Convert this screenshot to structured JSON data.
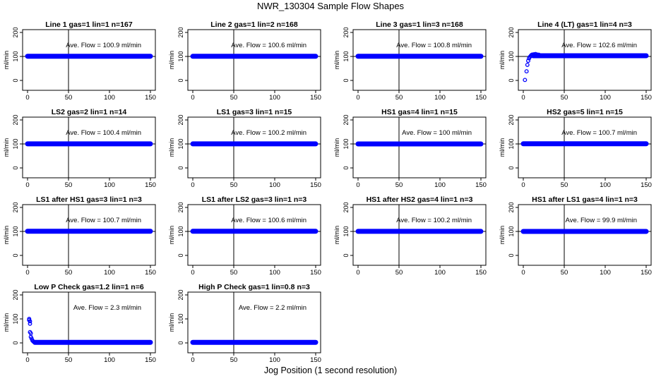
{
  "figure": {
    "title": "NWR_130304  Sample Flow Shapes",
    "xlabel": "Jog Position (1 second resolution)"
  },
  "colors": {
    "points": "#0000ff",
    "axes": "#000000",
    "background": "#ffffff"
  },
  "chart_data": [
    {
      "type": "scatter",
      "title": "Line 1 gas=1 lin=1 n=167",
      "ylabel": "ml/min",
      "annotation": "Ave. Flow =  100.9  ml/min",
      "xlim": [
        0,
        150
      ],
      "ylim": [
        0,
        200
      ],
      "xticks": [
        0,
        50,
        100,
        150
      ],
      "yticks": [
        0,
        100,
        200
      ],
      "vline_x": 50,
      "hline_y": 100,
      "shape": "flat",
      "flat_y": 100.9,
      "x_range": [
        0,
        150
      ]
    },
    {
      "type": "scatter",
      "title": "Line 2 gas=1 lin=2 n=168",
      "ylabel": "ml/min",
      "annotation": "Ave. Flow =  100.6  ml/min",
      "xlim": [
        0,
        150
      ],
      "ylim": [
        0,
        200
      ],
      "xticks": [
        0,
        50,
        100,
        150
      ],
      "yticks": [
        0,
        100,
        200
      ],
      "vline_x": 50,
      "hline_y": 100,
      "shape": "flat",
      "flat_y": 100.6,
      "x_range": [
        0,
        150
      ]
    },
    {
      "type": "scatter",
      "title": "Line 3 gas=1 lin=3 n=168",
      "ylabel": "ml/min",
      "annotation": "Ave. Flow =  100.8  ml/min",
      "xlim": [
        0,
        150
      ],
      "ylim": [
        0,
        200
      ],
      "xticks": [
        0,
        50,
        100,
        150
      ],
      "yticks": [
        0,
        100,
        200
      ],
      "vline_x": 50,
      "hline_y": 100,
      "shape": "flat",
      "flat_y": 100.8,
      "x_range": [
        0,
        150
      ]
    },
    {
      "type": "scatter",
      "title": "Line 4 (LT) gas=1 lin=4 n=3",
      "ylabel": "ml/min",
      "annotation": "Ave. Flow =  102.6  ml/min",
      "xlim": [
        0,
        150
      ],
      "ylim": [
        0,
        200
      ],
      "xticks": [
        0,
        50,
        100,
        150
      ],
      "yticks": [
        0,
        100,
        200
      ],
      "vline_x": 50,
      "hline_y": 100,
      "shape": "flat",
      "flat_y": 103,
      "x_range": [
        12,
        150
      ],
      "points": [
        [
          2,
          2
        ],
        [
          4,
          38
        ],
        [
          5,
          65
        ],
        [
          6,
          82
        ],
        [
          7,
          92
        ],
        [
          8,
          98
        ],
        [
          9,
          102
        ],
        [
          10,
          106
        ],
        [
          11,
          108
        ],
        [
          13,
          109
        ],
        [
          15,
          110
        ],
        [
          17,
          108
        ],
        [
          19,
          107
        ]
      ]
    },
    {
      "type": "scatter",
      "title": "LS2 gas=2 lin=1 n=14",
      "ylabel": "ml/min",
      "annotation": "Ave. Flow =  100.4  ml/min",
      "xlim": [
        0,
        150
      ],
      "ylim": [
        0,
        200
      ],
      "xticks": [
        0,
        50,
        100,
        150
      ],
      "yticks": [
        0,
        100,
        200
      ],
      "vline_x": 50,
      "hline_y": 100,
      "shape": "flat",
      "flat_y": 100.4,
      "x_range": [
        0,
        150
      ]
    },
    {
      "type": "scatter",
      "title": "LS1 gas=3 lin=1 n=15",
      "ylabel": "ml/min",
      "annotation": "Ave. Flow =  100.2  ml/min",
      "xlim": [
        0,
        150
      ],
      "ylim": [
        0,
        200
      ],
      "xticks": [
        0,
        50,
        100,
        150
      ],
      "yticks": [
        0,
        100,
        200
      ],
      "vline_x": 50,
      "hline_y": 100,
      "shape": "flat",
      "flat_y": 100.2,
      "x_range": [
        0,
        150
      ]
    },
    {
      "type": "scatter",
      "title": "HS1 gas=4 lin=1 n=15",
      "ylabel": "ml/min",
      "annotation": "Ave. Flow =  100  ml/min",
      "xlim": [
        0,
        150
      ],
      "ylim": [
        0,
        200
      ],
      "xticks": [
        0,
        50,
        100,
        150
      ],
      "yticks": [
        0,
        100,
        200
      ],
      "vline_x": 50,
      "hline_y": 100,
      "shape": "flat",
      "flat_y": 100,
      "x_range": [
        0,
        150
      ]
    },
    {
      "type": "scatter",
      "title": "HS2 gas=5 lin=1 n=15",
      "ylabel": "ml/min",
      "annotation": "Ave. Flow =  100.7  ml/min",
      "xlim": [
        0,
        150
      ],
      "ylim": [
        0,
        200
      ],
      "xticks": [
        0,
        50,
        100,
        150
      ],
      "yticks": [
        0,
        100,
        200
      ],
      "vline_x": 50,
      "hline_y": 100,
      "shape": "flat",
      "flat_y": 100.7,
      "x_range": [
        0,
        150
      ]
    },
    {
      "type": "scatter",
      "title": "LS1 after HS1 gas=3 lin=1 n=3",
      "ylabel": "ml/min",
      "annotation": "Ave. Flow =  100.7  ml/min",
      "xlim": [
        0,
        150
      ],
      "ylim": [
        0,
        200
      ],
      "xticks": [
        0,
        50,
        100,
        150
      ],
      "yticks": [
        0,
        100,
        200
      ],
      "vline_x": 50,
      "hline_y": 100,
      "shape": "flat",
      "flat_y": 100.7,
      "x_range": [
        0,
        150
      ]
    },
    {
      "type": "scatter",
      "title": "LS1 after LS2 gas=3 lin=1 n=3",
      "ylabel": "ml/min",
      "annotation": "Ave. Flow =  100.6  ml/min",
      "xlim": [
        0,
        150
      ],
      "ylim": [
        0,
        200
      ],
      "xticks": [
        0,
        50,
        100,
        150
      ],
      "yticks": [
        0,
        100,
        200
      ],
      "vline_x": 50,
      "hline_y": 100,
      "shape": "flat",
      "flat_y": 100.6,
      "x_range": [
        0,
        150
      ]
    },
    {
      "type": "scatter",
      "title": "HS1 after HS2 gas=4 lin=1 n=3",
      "ylabel": "ml/min",
      "annotation": "Ave. Flow =  100.2  ml/min",
      "xlim": [
        0,
        150
      ],
      "ylim": [
        0,
        200
      ],
      "xticks": [
        0,
        50,
        100,
        150
      ],
      "yticks": [
        0,
        100,
        200
      ],
      "vline_x": 50,
      "hline_y": 100,
      "shape": "flat",
      "flat_y": 100.2,
      "x_range": [
        0,
        150
      ]
    },
    {
      "type": "scatter",
      "title": "HS1 after LS1 gas=4 lin=1 n=3",
      "ylabel": "ml/min",
      "annotation": "Ave. Flow =  99.9  ml/min",
      "xlim": [
        0,
        150
      ],
      "ylim": [
        0,
        200
      ],
      "xticks": [
        0,
        50,
        100,
        150
      ],
      "yticks": [
        0,
        100,
        200
      ],
      "vline_x": 50,
      "hline_y": 100,
      "shape": "flat",
      "flat_y": 99.9,
      "x_range": [
        0,
        150
      ]
    },
    {
      "type": "scatter",
      "title": "Low P Check gas=1.2 lin=1 n=6",
      "ylabel": "ml/min",
      "annotation": "Ave. Flow =  2.3  ml/min",
      "xlim": [
        0,
        150
      ],
      "ylim": [
        0,
        200
      ],
      "xticks": [
        0,
        50,
        100,
        150
      ],
      "yticks": [
        0,
        100,
        200
      ],
      "vline_x": 50,
      "hline_y": null,
      "shape": "flat",
      "flat_y": 2.3,
      "x_range": [
        9,
        150
      ],
      "points": [
        [
          2,
          100
        ],
        [
          2,
          95
        ],
        [
          3,
          90
        ],
        [
          3,
          80
        ],
        [
          3,
          45
        ],
        [
          4,
          40
        ],
        [
          4,
          25
        ],
        [
          5,
          18
        ],
        [
          6,
          10
        ],
        [
          7,
          6
        ],
        [
          8,
          4
        ]
      ]
    },
    {
      "type": "scatter",
      "title": "High P Check gas=1 lin=0.8 n=3",
      "ylabel": "ml/min",
      "annotation": "Ave. Flow =  2.2  ml/min",
      "xlim": [
        0,
        150
      ],
      "ylim": [
        0,
        200
      ],
      "xticks": [
        0,
        50,
        100,
        150
      ],
      "yticks": [
        0,
        100,
        200
      ],
      "vline_x": 50,
      "hline_y": null,
      "shape": "flat",
      "flat_y": 2.2,
      "x_range": [
        0,
        150
      ]
    }
  ]
}
